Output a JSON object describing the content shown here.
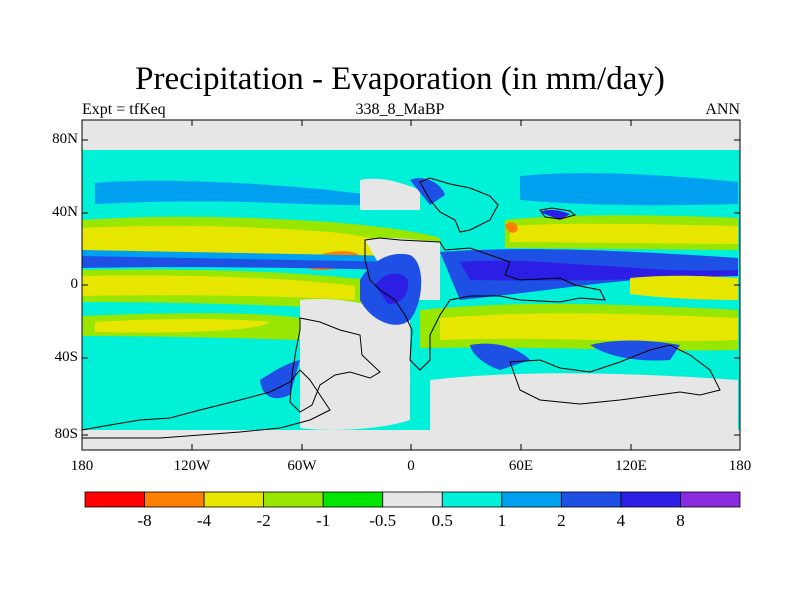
{
  "title": "Precipitation - Evaporation (in mm/day)",
  "experiment_label": "Expt = tfKeq",
  "case_label": "338_8_MaBP",
  "season_label": "ANN",
  "lat_ticks": [
    "80N",
    "40N",
    "0",
    "40S",
    "80S"
  ],
  "lon_ticks": [
    "180",
    "120W",
    "60W",
    "0",
    "60E",
    "120E",
    "180"
  ],
  "colorbar": {
    "colors": [
      "#ff0000",
      "#ff8000",
      "#e6e600",
      "#99e600",
      "#00e600",
      "#e6e6e6",
      "#00f0d8",
      "#00a0f0",
      "#1e50e6",
      "#2d1ee6",
      "#8a2be2"
    ],
    "labels": [
      "-8",
      "-4",
      "-2",
      "-1",
      "-0.5",
      "0.5",
      "1",
      "2",
      "4",
      "8"
    ]
  },
  "palette": {
    "ocean_base": "#00f0d8",
    "neutral": "#e6e6e6",
    "yellow": "#e6e600",
    "lightgreen": "#99e600",
    "green": "#00e600",
    "lightblue": "#00a0f0",
    "blue": "#1e50e6",
    "darkblue": "#2d1ee6",
    "orange": "#ff8000"
  }
}
